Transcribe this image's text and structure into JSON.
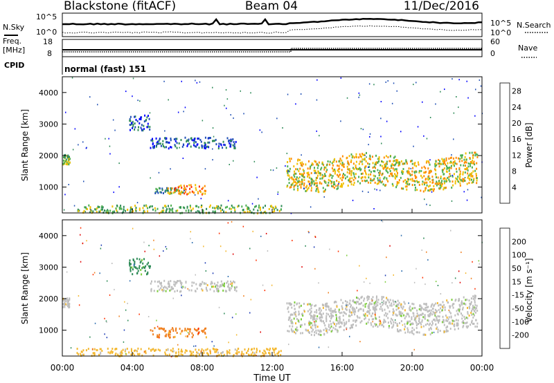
{
  "header": {
    "station": "Blackstone (fitACF)",
    "beam": "Beam 04",
    "date": "11/Dec/2016"
  },
  "side_labels": {
    "nsky": "N.Sky",
    "nsearch": "N.Search",
    "freq": "Freq.",
    "freq_unit": "[MHz]",
    "nave": "Nave",
    "cpid": "CPID"
  },
  "cpid_text": "normal (fast) 151",
  "noise_panel": {
    "left_ticks": [
      "10^5",
      "10^0"
    ],
    "right_ticks": [
      "10^5",
      "10^0"
    ]
  },
  "freq_panel": {
    "left_ticks": [
      "18",
      "8"
    ],
    "right_ticks": [
      "60",
      "0"
    ],
    "ylim_left": [
      8,
      18
    ],
    "ylim_right": [
      0,
      60
    ]
  },
  "chart_data": [
    {
      "type": "heatmap",
      "name": "power",
      "xlabel": "",
      "ylabel": "Slant Range [km]",
      "xlim_hours": [
        0,
        24
      ],
      "ylim_km": [
        180,
        4500
      ],
      "y_ticks": [
        1000,
        2000,
        3000,
        4000
      ],
      "colorbar": {
        "label": "Power [dB]",
        "ticks": [
          4,
          8,
          12,
          16,
          20,
          24,
          28
        ],
        "range": [
          0,
          30
        ],
        "colors": [
          "#0000ff",
          "#1f4fb5",
          "#2e8b57",
          "#4caf50",
          "#f0c000",
          "#ff8c00",
          "#ff3000",
          "#e00000"
        ]
      },
      "features": [
        {
          "t": [
            0.0,
            0.4
          ],
          "r": [
            1750,
            2050
          ],
          "level": 14
        },
        {
          "t": [
            5.2,
            7.0
          ],
          "r": [
            820,
            1000
          ],
          "level": 8
        },
        {
          "t": [
            6.0,
            8.2
          ],
          "r": [
            800,
            1100
          ],
          "level": 20
        },
        {
          "t": [
            3.8,
            5.0
          ],
          "r": [
            2800,
            3300
          ],
          "level": 6
        },
        {
          "t": [
            5.0,
            10.0
          ],
          "r": [
            2250,
            2600
          ],
          "level": 5
        },
        {
          "t": [
            12.8,
            23.7
          ],
          "r": [
            1000,
            2000
          ],
          "level": 18
        },
        {
          "t": [
            0.8,
            12.5
          ],
          "r": [
            200,
            450
          ],
          "level": 12
        }
      ]
    },
    {
      "type": "heatmap",
      "name": "velocity",
      "xlabel": "Time UT",
      "ylabel": "Slant Range [km]",
      "xlim_hours": [
        0,
        24
      ],
      "ylim_km": [
        180,
        4500
      ],
      "y_ticks": [
        1000,
        2000,
        3000,
        4000
      ],
      "x_ticks": [
        "00:00",
        "04:00",
        "08:00",
        "12:00",
        "16:00",
        "20:00",
        "00:00"
      ],
      "colorbar": {
        "label": "Velocity [m s⁻¹]",
        "ticks": [
          200,
          100,
          50,
          15,
          -15,
          -50,
          -100,
          -200
        ],
        "colors": [
          "#1e3cb4",
          "#2f6fb0",
          "#2e8b57",
          "#7ccd3c",
          "#bebebe",
          "#f4b830",
          "#f08020",
          "#ff3000",
          "#e00000"
        ]
      },
      "features": [
        {
          "t": [
            0.0,
            0.4
          ],
          "r": [
            1750,
            2050
          ],
          "v": 0
        },
        {
          "t": [
            5.0,
            8.2
          ],
          "r": [
            800,
            1100
          ],
          "v": -70
        },
        {
          "t": [
            3.8,
            5.0
          ],
          "r": [
            2800,
            3300
          ],
          "v": 20
        },
        {
          "t": [
            5.0,
            10.0
          ],
          "r": [
            2250,
            2600
          ],
          "v": 10
        },
        {
          "t": [
            12.8,
            23.7
          ],
          "r": [
            1000,
            2000
          ],
          "v": 0
        },
        {
          "t": [
            0.8,
            12.5
          ],
          "r": [
            200,
            450
          ],
          "v": -30
        }
      ]
    }
  ]
}
